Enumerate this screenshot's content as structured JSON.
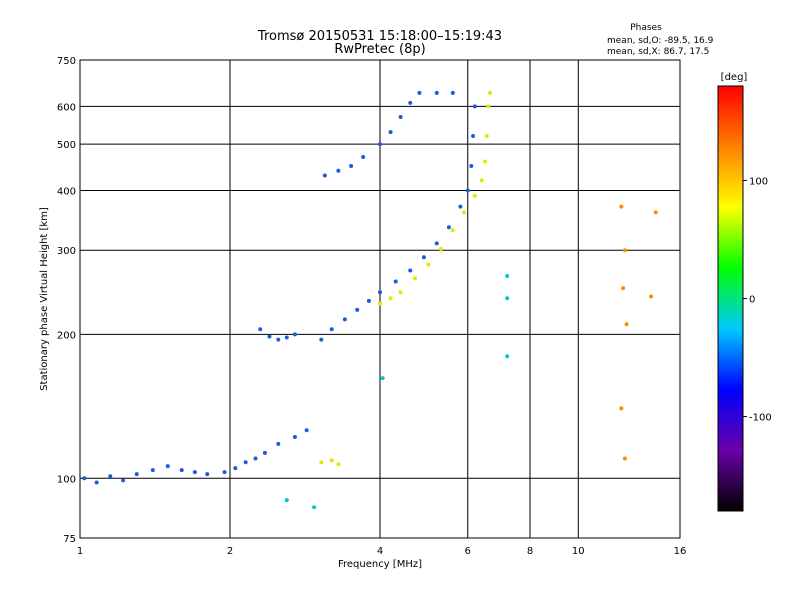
{
  "header": {
    "title_line1": "Tromsø 20150531 15:18:00–15:19:43",
    "title_line2": "RwPretec (8p)"
  },
  "phases_box": {
    "heading": "Phases",
    "line_o": "mean, sd,O: -89.5, 16.9",
    "line_x": "mean, sd,X:  86.7, 17.5"
  },
  "chart_data": {
    "type": "scatter",
    "title": "Tromsø 20150531 15:18:00–15:19:43",
    "subtitle": "RwPretec (8p)",
    "xlabel": "Frequency [MHz]",
    "ylabel": "Stationary phase Virtual Height [km]",
    "xscale": "log",
    "yscale": "log",
    "xlim": [
      1,
      16
    ],
    "ylim": [
      75,
      750
    ],
    "xticks": [
      1,
      2,
      4,
      6,
      8,
      10,
      16
    ],
    "xtick_labels": [
      "1",
      "2",
      "4",
      "6",
      "8",
      "10",
      "16"
    ],
    "yticks": [
      75,
      100,
      200,
      300,
      400,
      500,
      600,
      750
    ],
    "ytick_labels": [
      "75",
      "100",
      "200",
      "300",
      "400",
      "500",
      "600",
      "750"
    ],
    "grid": true,
    "colorbar": {
      "label": "[deg]",
      "range": [
        -180,
        180
      ],
      "ticks": [
        100,
        0,
        -100
      ],
      "tick_labels": [
        "100",
        "0",
        "-100"
      ],
      "colors": [
        "#000000",
        "#6a00a8",
        "#0000ff",
        "#00c8ff",
        "#00ff00",
        "#ffff00",
        "#ff8000",
        "#ff0000"
      ]
    },
    "series": [
      {
        "color": "#1e5adc",
        "points": [
          {
            "x": 1.02,
            "y": 100
          },
          {
            "x": 1.08,
            "y": 98
          },
          {
            "x": 1.15,
            "y": 101
          },
          {
            "x": 1.22,
            "y": 99
          },
          {
            "x": 1.3,
            "y": 102
          },
          {
            "x": 1.4,
            "y": 104
          },
          {
            "x": 1.5,
            "y": 106
          },
          {
            "x": 1.6,
            "y": 104
          },
          {
            "x": 1.7,
            "y": 103
          },
          {
            "x": 1.8,
            "y": 102
          },
          {
            "x": 1.95,
            "y": 103
          },
          {
            "x": 2.05,
            "y": 105
          },
          {
            "x": 2.15,
            "y": 108
          },
          {
            "x": 2.25,
            "y": 110
          },
          {
            "x": 2.35,
            "y": 113
          },
          {
            "x": 2.5,
            "y": 118
          },
          {
            "x": 2.7,
            "y": 122
          },
          {
            "x": 2.85,
            "y": 126
          },
          {
            "x": 2.3,
            "y": 205
          },
          {
            "x": 2.4,
            "y": 198
          },
          {
            "x": 2.5,
            "y": 195
          },
          {
            "x": 2.6,
            "y": 197
          },
          {
            "x": 2.7,
            "y": 200
          },
          {
            "x": 3.05,
            "y": 195
          },
          {
            "x": 3.2,
            "y": 205
          },
          {
            "x": 3.4,
            "y": 215
          },
          {
            "x": 3.6,
            "y": 225
          },
          {
            "x": 3.8,
            "y": 235
          },
          {
            "x": 4.0,
            "y": 245
          },
          {
            "x": 4.3,
            "y": 258
          },
          {
            "x": 4.6,
            "y": 272
          },
          {
            "x": 4.9,
            "y": 290
          },
          {
            "x": 5.2,
            "y": 310
          },
          {
            "x": 5.5,
            "y": 335
          },
          {
            "x": 5.8,
            "y": 370
          },
          {
            "x": 6.0,
            "y": 400
          },
          {
            "x": 6.1,
            "y": 450
          },
          {
            "x": 6.15,
            "y": 520
          },
          {
            "x": 6.2,
            "y": 600
          },
          {
            "x": 3.1,
            "y": 430
          },
          {
            "x": 3.3,
            "y": 440
          },
          {
            "x": 3.5,
            "y": 450
          },
          {
            "x": 3.7,
            "y": 470
          },
          {
            "x": 4.0,
            "y": 500
          },
          {
            "x": 4.2,
            "y": 530
          },
          {
            "x": 4.4,
            "y": 570
          },
          {
            "x": 4.6,
            "y": 610
          },
          {
            "x": 4.8,
            "y": 640
          },
          {
            "x": 5.2,
            "y": 640
          },
          {
            "x": 5.6,
            "y": 640
          }
        ]
      },
      {
        "color": "#e6e600",
        "points": [
          {
            "x": 3.05,
            "y": 108
          },
          {
            "x": 3.2,
            "y": 109
          },
          {
            "x": 3.3,
            "y": 107
          },
          {
            "x": 4.0,
            "y": 232
          },
          {
            "x": 4.2,
            "y": 238
          },
          {
            "x": 4.4,
            "y": 245
          },
          {
            "x": 4.7,
            "y": 262
          },
          {
            "x": 5.0,
            "y": 280
          },
          {
            "x": 5.3,
            "y": 302
          },
          {
            "x": 5.6,
            "y": 330
          },
          {
            "x": 5.9,
            "y": 360
          },
          {
            "x": 6.2,
            "y": 390
          },
          {
            "x": 6.4,
            "y": 420
          },
          {
            "x": 6.5,
            "y": 460
          },
          {
            "x": 6.55,
            "y": 520
          },
          {
            "x": 6.6,
            "y": 600
          },
          {
            "x": 6.65,
            "y": 640
          }
        ]
      },
      {
        "color": "#ff8c00",
        "points": [
          {
            "x": 12.2,
            "y": 370
          },
          {
            "x": 12.4,
            "y": 300
          },
          {
            "x": 12.3,
            "y": 250
          },
          {
            "x": 12.5,
            "y": 210
          },
          {
            "x": 12.2,
            "y": 140
          },
          {
            "x": 12.4,
            "y": 110
          },
          {
            "x": 14.3,
            "y": 360
          },
          {
            "x": 14.0,
            "y": 240
          }
        ]
      },
      {
        "color": "#00c8c8",
        "points": [
          {
            "x": 7.2,
            "y": 265
          },
          {
            "x": 7.2,
            "y": 238
          },
          {
            "x": 7.2,
            "y": 180
          },
          {
            "x": 4.05,
            "y": 162
          },
          {
            "x": 2.95,
            "y": 87
          },
          {
            "x": 2.6,
            "y": 90
          }
        ]
      }
    ]
  }
}
